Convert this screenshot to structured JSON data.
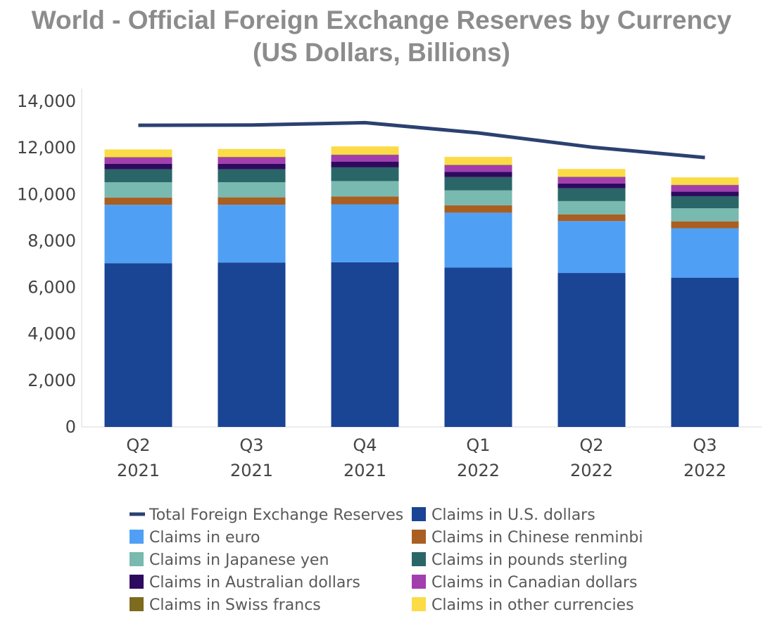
{
  "chart_data": {
    "type": "bar",
    "stacked": true,
    "title": "World - Official Foreign Exchange Reserves by Currency",
    "subtitle": "(US Dollars, Billions)",
    "ylim": [
      0,
      14000
    ],
    "yticks": [
      0,
      2000,
      4000,
      6000,
      8000,
      10000,
      12000,
      14000
    ],
    "ytick_labels": [
      "0",
      "2,000",
      "4,000",
      "6,000",
      "8,000",
      "10,000",
      "12,000",
      "14,000"
    ],
    "grid": false,
    "legend_position": "bottom",
    "categories": [
      {
        "quarter": "Q2",
        "year": "2021"
      },
      {
        "quarter": "Q3",
        "year": "2021"
      },
      {
        "quarter": "Q4",
        "year": "2021"
      },
      {
        "quarter": "Q1",
        "year": "2022"
      },
      {
        "quarter": "Q2",
        "year": "2022"
      },
      {
        "quarter": "Q3",
        "year": "2022"
      }
    ],
    "series": [
      {
        "name": "Claims in U.S. dollars",
        "color": "#1a4494",
        "values": [
          7040,
          7070,
          7080,
          6850,
          6620,
          6420
        ]
      },
      {
        "name": "Claims in euro",
        "color": "#4fa0f5",
        "values": [
          2510,
          2480,
          2490,
          2360,
          2230,
          2120
        ]
      },
      {
        "name": "Claims in Chinese renminbi",
        "color": "#a95f22",
        "values": [
          310,
          320,
          340,
          320,
          290,
          300
        ]
      },
      {
        "name": "Claims in Japanese yen",
        "color": "#78b9b0",
        "values": [
          660,
          650,
          660,
          640,
          570,
          560
        ]
      },
      {
        "name": "Claims in pounds sterling",
        "color": "#2a6667",
        "values": [
          560,
          560,
          590,
          570,
          550,
          520
        ]
      },
      {
        "name": "Claims in Australian dollars",
        "color": "#2e0a5e",
        "values": [
          230,
          230,
          240,
          230,
          210,
          200
        ]
      },
      {
        "name": "Claims in Canadian dollars",
        "color": "#a23ead",
        "values": [
          270,
          280,
          290,
          280,
          270,
          270
        ]
      },
      {
        "name": "Claims in Swiss francs",
        "color": "#7d6b1e",
        "values": [
          20,
          20,
          20,
          20,
          20,
          20
        ]
      },
      {
        "name": "Claims in other currencies",
        "color": "#fbdc46",
        "values": [
          330,
          340,
          350,
          340,
          330,
          320
        ]
      }
    ],
    "line": {
      "name": "Total Foreign Exchange Reserves",
      "color": "#2b4170",
      "values": [
        12970,
        12980,
        13080,
        12640,
        12030,
        11580
      ]
    },
    "legend_order": [
      "Total Foreign Exchange Reserves",
      "Claims in U.S. dollars",
      "Claims in euro",
      "Claims in Chinese renminbi",
      "Claims in Japanese yen",
      "Claims in pounds sterling",
      "Claims in Australian dollars",
      "Claims in Canadian dollars",
      "Claims in Swiss francs",
      "Claims in other currencies"
    ]
  }
}
